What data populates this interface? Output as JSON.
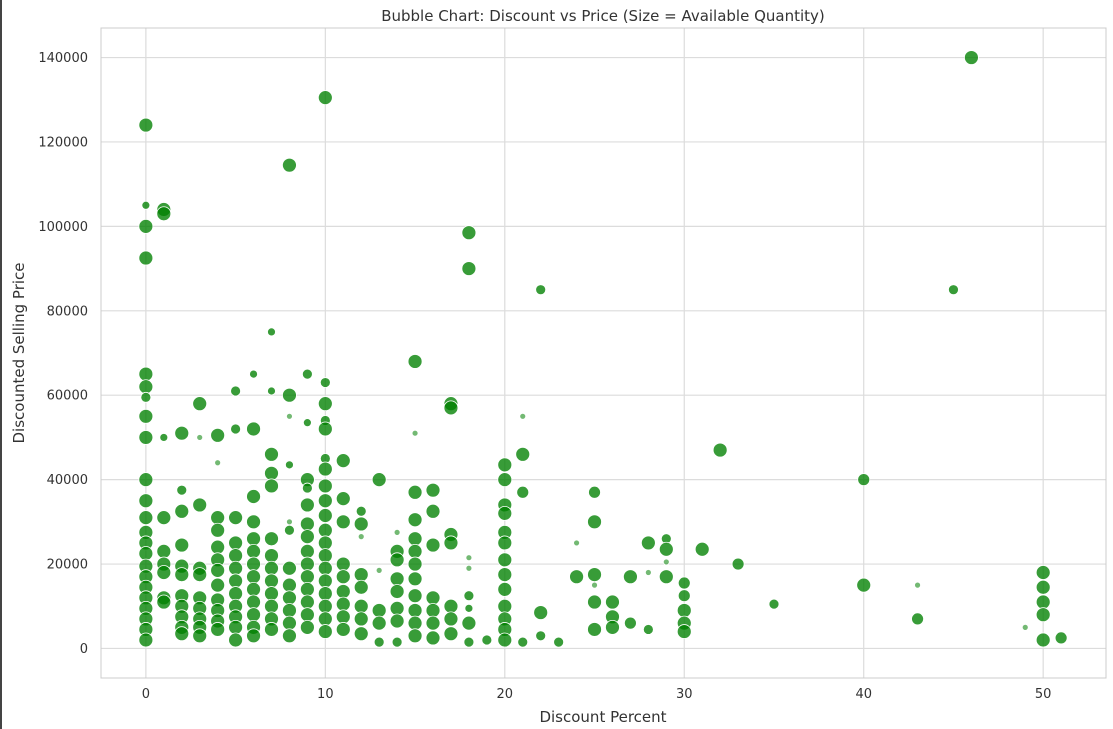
{
  "chart_data": {
    "type": "scatter",
    "title": "Bubble Chart: Discount vs Price (Size = Available Quantity)",
    "xlabel": "Discount Percent",
    "ylabel": "Discounted Selling Price",
    "xlim": [
      -2.5,
      53.5
    ],
    "ylim": [
      -7000,
      147000
    ],
    "xticks": [
      0,
      10,
      20,
      30,
      40,
      50
    ],
    "yticks": [
      0,
      20000,
      40000,
      60000,
      80000,
      100000,
      120000,
      140000
    ],
    "grid": true,
    "color": "#008000",
    "size_encoding": "Available Quantity",
    "points": [
      {
        "x": 0,
        "y": 124000,
        "s": 7
      },
      {
        "x": 0,
        "y": 105000,
        "s": 4
      },
      {
        "x": 0,
        "y": 100000,
        "s": 7
      },
      {
        "x": 0,
        "y": 92500,
        "s": 7
      },
      {
        "x": 0,
        "y": 65000,
        "s": 7
      },
      {
        "x": 0,
        "y": 62000,
        "s": 7
      },
      {
        "x": 0,
        "y": 59500,
        "s": 5
      },
      {
        "x": 0,
        "y": 55000,
        "s": 7
      },
      {
        "x": 0,
        "y": 50000,
        "s": 7
      },
      {
        "x": 0,
        "y": 40000,
        "s": 7
      },
      {
        "x": 0,
        "y": 35000,
        "s": 7
      },
      {
        "x": 0,
        "y": 31000,
        "s": 7
      },
      {
        "x": 0,
        "y": 27500,
        "s": 7
      },
      {
        "x": 0,
        "y": 25000,
        "s": 7
      },
      {
        "x": 0,
        "y": 22500,
        "s": 7
      },
      {
        "x": 0,
        "y": 19500,
        "s": 7
      },
      {
        "x": 0,
        "y": 17000,
        "s": 7
      },
      {
        "x": 0,
        "y": 14500,
        "s": 7
      },
      {
        "x": 0,
        "y": 12000,
        "s": 7
      },
      {
        "x": 0,
        "y": 9500,
        "s": 7
      },
      {
        "x": 0,
        "y": 7000,
        "s": 7
      },
      {
        "x": 0,
        "y": 4500,
        "s": 7
      },
      {
        "x": 0,
        "y": 2000,
        "s": 7
      },
      {
        "x": 1,
        "y": 104000,
        "s": 7
      },
      {
        "x": 1,
        "y": 103000,
        "s": 7
      },
      {
        "x": 1,
        "y": 50000,
        "s": 4
      },
      {
        "x": 1,
        "y": 31000,
        "s": 7
      },
      {
        "x": 1,
        "y": 23000,
        "s": 7
      },
      {
        "x": 1,
        "y": 20000,
        "s": 7
      },
      {
        "x": 1,
        "y": 18000,
        "s": 7
      },
      {
        "x": 1,
        "y": 12000,
        "s": 7
      },
      {
        "x": 1,
        "y": 11000,
        "s": 7
      },
      {
        "x": 2,
        "y": 51000,
        "s": 7
      },
      {
        "x": 2,
        "y": 37500,
        "s": 5
      },
      {
        "x": 2,
        "y": 32500,
        "s": 7
      },
      {
        "x": 2,
        "y": 24500,
        "s": 7
      },
      {
        "x": 2,
        "y": 19500,
        "s": 7
      },
      {
        "x": 2,
        "y": 17500,
        "s": 7
      },
      {
        "x": 2,
        "y": 12500,
        "s": 7
      },
      {
        "x": 2,
        "y": 10000,
        "s": 7
      },
      {
        "x": 2,
        "y": 7500,
        "s": 7
      },
      {
        "x": 2,
        "y": 5000,
        "s": 7
      },
      {
        "x": 2,
        "y": 3500,
        "s": 7
      },
      {
        "x": 3,
        "y": 58000,
        "s": 7
      },
      {
        "x": 3,
        "y": 50000,
        "s": 3
      },
      {
        "x": 3,
        "y": 34000,
        "s": 7
      },
      {
        "x": 3,
        "y": 19000,
        "s": 7
      },
      {
        "x": 3,
        "y": 17500,
        "s": 7
      },
      {
        "x": 3,
        "y": 12000,
        "s": 7
      },
      {
        "x": 3,
        "y": 9500,
        "s": 7
      },
      {
        "x": 3,
        "y": 7000,
        "s": 7
      },
      {
        "x": 3,
        "y": 5000,
        "s": 7
      },
      {
        "x": 3,
        "y": 3000,
        "s": 7
      },
      {
        "x": 4,
        "y": 50500,
        "s": 7
      },
      {
        "x": 4,
        "y": 44000,
        "s": 3
      },
      {
        "x": 4,
        "y": 31000,
        "s": 7
      },
      {
        "x": 4,
        "y": 28000,
        "s": 7
      },
      {
        "x": 4,
        "y": 24000,
        "s": 7
      },
      {
        "x": 4,
        "y": 21000,
        "s": 7
      },
      {
        "x": 4,
        "y": 18500,
        "s": 7
      },
      {
        "x": 4,
        "y": 15000,
        "s": 7
      },
      {
        "x": 4,
        "y": 11500,
        "s": 7
      },
      {
        "x": 4,
        "y": 9000,
        "s": 7
      },
      {
        "x": 4,
        "y": 6500,
        "s": 7
      },
      {
        "x": 4,
        "y": 4500,
        "s": 7
      },
      {
        "x": 5,
        "y": 61000,
        "s": 5
      },
      {
        "x": 5,
        "y": 52000,
        "s": 5
      },
      {
        "x": 5,
        "y": 31000,
        "s": 7
      },
      {
        "x": 5,
        "y": 25000,
        "s": 7
      },
      {
        "x": 5,
        "y": 22000,
        "s": 7
      },
      {
        "x": 5,
        "y": 19000,
        "s": 7
      },
      {
        "x": 5,
        "y": 16000,
        "s": 7
      },
      {
        "x": 5,
        "y": 13000,
        "s": 7
      },
      {
        "x": 5,
        "y": 10000,
        "s": 7
      },
      {
        "x": 5,
        "y": 7500,
        "s": 7
      },
      {
        "x": 5,
        "y": 5000,
        "s": 7
      },
      {
        "x": 5,
        "y": 2000,
        "s": 7
      },
      {
        "x": 6,
        "y": 65000,
        "s": 4
      },
      {
        "x": 6,
        "y": 52000,
        "s": 7
      },
      {
        "x": 6,
        "y": 36000,
        "s": 7
      },
      {
        "x": 6,
        "y": 30000,
        "s": 7
      },
      {
        "x": 6,
        "y": 26000,
        "s": 7
      },
      {
        "x": 6,
        "y": 23000,
        "s": 7
      },
      {
        "x": 6,
        "y": 20000,
        "s": 7
      },
      {
        "x": 6,
        "y": 17000,
        "s": 7
      },
      {
        "x": 6,
        "y": 14000,
        "s": 7
      },
      {
        "x": 6,
        "y": 11000,
        "s": 7
      },
      {
        "x": 6,
        "y": 8000,
        "s": 7
      },
      {
        "x": 6,
        "y": 5000,
        "s": 7
      },
      {
        "x": 6,
        "y": 3000,
        "s": 7
      },
      {
        "x": 7,
        "y": 75000,
        "s": 4
      },
      {
        "x": 7,
        "y": 61000,
        "s": 4
      },
      {
        "x": 7,
        "y": 46000,
        "s": 7
      },
      {
        "x": 7,
        "y": 41500,
        "s": 7
      },
      {
        "x": 7,
        "y": 38500,
        "s": 7
      },
      {
        "x": 7,
        "y": 26000,
        "s": 7
      },
      {
        "x": 7,
        "y": 22000,
        "s": 7
      },
      {
        "x": 7,
        "y": 19000,
        "s": 7
      },
      {
        "x": 7,
        "y": 16000,
        "s": 7
      },
      {
        "x": 7,
        "y": 13000,
        "s": 7
      },
      {
        "x": 7,
        "y": 10000,
        "s": 7
      },
      {
        "x": 7,
        "y": 7000,
        "s": 7
      },
      {
        "x": 7,
        "y": 4500,
        "s": 7
      },
      {
        "x": 8,
        "y": 114500,
        "s": 7
      },
      {
        "x": 8,
        "y": 60000,
        "s": 7
      },
      {
        "x": 8,
        "y": 55000,
        "s": 3
      },
      {
        "x": 8,
        "y": 43500,
        "s": 4
      },
      {
        "x": 8,
        "y": 30000,
        "s": 3
      },
      {
        "x": 8,
        "y": 28000,
        "s": 5
      },
      {
        "x": 8,
        "y": 19000,
        "s": 7
      },
      {
        "x": 8,
        "y": 15000,
        "s": 7
      },
      {
        "x": 8,
        "y": 12000,
        "s": 7
      },
      {
        "x": 8,
        "y": 9000,
        "s": 7
      },
      {
        "x": 8,
        "y": 6000,
        "s": 7
      },
      {
        "x": 8,
        "y": 3000,
        "s": 7
      },
      {
        "x": 9,
        "y": 65000,
        "s": 5
      },
      {
        "x": 9,
        "y": 53500,
        "s": 4
      },
      {
        "x": 9,
        "y": 40000,
        "s": 7
      },
      {
        "x": 9,
        "y": 38000,
        "s": 5
      },
      {
        "x": 9,
        "y": 34000,
        "s": 7
      },
      {
        "x": 9,
        "y": 29500,
        "s": 7
      },
      {
        "x": 9,
        "y": 26500,
        "s": 7
      },
      {
        "x": 9,
        "y": 23000,
        "s": 7
      },
      {
        "x": 9,
        "y": 20000,
        "s": 7
      },
      {
        "x": 9,
        "y": 17000,
        "s": 7
      },
      {
        "x": 9,
        "y": 14000,
        "s": 7
      },
      {
        "x": 9,
        "y": 11000,
        "s": 7
      },
      {
        "x": 9,
        "y": 8000,
        "s": 7
      },
      {
        "x": 9,
        "y": 5000,
        "s": 7
      },
      {
        "x": 10,
        "y": 130500,
        "s": 7
      },
      {
        "x": 10,
        "y": 63000,
        "s": 5
      },
      {
        "x": 10,
        "y": 58000,
        "s": 7
      },
      {
        "x": 10,
        "y": 54000,
        "s": 5
      },
      {
        "x": 10,
        "y": 52000,
        "s": 7
      },
      {
        "x": 10,
        "y": 45000,
        "s": 5
      },
      {
        "x": 10,
        "y": 42500,
        "s": 7
      },
      {
        "x": 10,
        "y": 38500,
        "s": 7
      },
      {
        "x": 10,
        "y": 35000,
        "s": 7
      },
      {
        "x": 10,
        "y": 31500,
        "s": 7
      },
      {
        "x": 10,
        "y": 28000,
        "s": 7
      },
      {
        "x": 10,
        "y": 25000,
        "s": 7
      },
      {
        "x": 10,
        "y": 22000,
        "s": 7
      },
      {
        "x": 10,
        "y": 19000,
        "s": 7
      },
      {
        "x": 10,
        "y": 16000,
        "s": 7
      },
      {
        "x": 10,
        "y": 13000,
        "s": 7
      },
      {
        "x": 10,
        "y": 10000,
        "s": 7
      },
      {
        "x": 10,
        "y": 7000,
        "s": 7
      },
      {
        "x": 10,
        "y": 4000,
        "s": 7
      },
      {
        "x": 11,
        "y": 44500,
        "s": 7
      },
      {
        "x": 11,
        "y": 35500,
        "s": 7
      },
      {
        "x": 11,
        "y": 30000,
        "s": 7
      },
      {
        "x": 11,
        "y": 20000,
        "s": 7
      },
      {
        "x": 11,
        "y": 17000,
        "s": 7
      },
      {
        "x": 11,
        "y": 13500,
        "s": 7
      },
      {
        "x": 11,
        "y": 10500,
        "s": 7
      },
      {
        "x": 11,
        "y": 7500,
        "s": 7
      },
      {
        "x": 11,
        "y": 4500,
        "s": 7
      },
      {
        "x": 12,
        "y": 32500,
        "s": 5
      },
      {
        "x": 12,
        "y": 29500,
        "s": 7
      },
      {
        "x": 12,
        "y": 26500,
        "s": 3
      },
      {
        "x": 12,
        "y": 17500,
        "s": 7
      },
      {
        "x": 12,
        "y": 14500,
        "s": 7
      },
      {
        "x": 12,
        "y": 10000,
        "s": 7
      },
      {
        "x": 12,
        "y": 7000,
        "s": 7
      },
      {
        "x": 12,
        "y": 3500,
        "s": 7
      },
      {
        "x": 13,
        "y": 40000,
        "s": 7
      },
      {
        "x": 13,
        "y": 18500,
        "s": 3
      },
      {
        "x": 13,
        "y": 9000,
        "s": 7
      },
      {
        "x": 13,
        "y": 6000,
        "s": 7
      },
      {
        "x": 13,
        "y": 1500,
        "s": 5
      },
      {
        "x": 14,
        "y": 27500,
        "s": 3
      },
      {
        "x": 14,
        "y": 23000,
        "s": 7
      },
      {
        "x": 14,
        "y": 21000,
        "s": 7
      },
      {
        "x": 14,
        "y": 16500,
        "s": 7
      },
      {
        "x": 14,
        "y": 13500,
        "s": 7
      },
      {
        "x": 14,
        "y": 9500,
        "s": 7
      },
      {
        "x": 14,
        "y": 6500,
        "s": 7
      },
      {
        "x": 14,
        "y": 1500,
        "s": 5
      },
      {
        "x": 15,
        "y": 68000,
        "s": 7
      },
      {
        "x": 15,
        "y": 51000,
        "s": 3
      },
      {
        "x": 15,
        "y": 37000,
        "s": 7
      },
      {
        "x": 15,
        "y": 30500,
        "s": 7
      },
      {
        "x": 15,
        "y": 26000,
        "s": 7
      },
      {
        "x": 15,
        "y": 23000,
        "s": 7
      },
      {
        "x": 15,
        "y": 20000,
        "s": 7
      },
      {
        "x": 15,
        "y": 16500,
        "s": 7
      },
      {
        "x": 15,
        "y": 12500,
        "s": 7
      },
      {
        "x": 15,
        "y": 9000,
        "s": 7
      },
      {
        "x": 15,
        "y": 6000,
        "s": 7
      },
      {
        "x": 15,
        "y": 3000,
        "s": 7
      },
      {
        "x": 16,
        "y": 37500,
        "s": 7
      },
      {
        "x": 16,
        "y": 32500,
        "s": 7
      },
      {
        "x": 16,
        "y": 24500,
        "s": 7
      },
      {
        "x": 16,
        "y": 12000,
        "s": 7
      },
      {
        "x": 16,
        "y": 9000,
        "s": 7
      },
      {
        "x": 16,
        "y": 6000,
        "s": 7
      },
      {
        "x": 16,
        "y": 2500,
        "s": 7
      },
      {
        "x": 17,
        "y": 58000,
        "s": 7
      },
      {
        "x": 17,
        "y": 57000,
        "s": 7
      },
      {
        "x": 17,
        "y": 27000,
        "s": 7
      },
      {
        "x": 17,
        "y": 25000,
        "s": 7
      },
      {
        "x": 17,
        "y": 10000,
        "s": 7
      },
      {
        "x": 17,
        "y": 7000,
        "s": 7
      },
      {
        "x": 17,
        "y": 3500,
        "s": 7
      },
      {
        "x": 18,
        "y": 98500,
        "s": 7
      },
      {
        "x": 18,
        "y": 90000,
        "s": 7
      },
      {
        "x": 18,
        "y": 21500,
        "s": 3
      },
      {
        "x": 18,
        "y": 19000,
        "s": 3
      },
      {
        "x": 18,
        "y": 12500,
        "s": 5
      },
      {
        "x": 18,
        "y": 9500,
        "s": 4
      },
      {
        "x": 18,
        "y": 6000,
        "s": 7
      },
      {
        "x": 18,
        "y": 1500,
        "s": 5
      },
      {
        "x": 19,
        "y": 2000,
        "s": 5
      },
      {
        "x": 20,
        "y": 43500,
        "s": 7
      },
      {
        "x": 20,
        "y": 40000,
        "s": 7
      },
      {
        "x": 20,
        "y": 34000,
        "s": 7
      },
      {
        "x": 20,
        "y": 32000,
        "s": 7
      },
      {
        "x": 20,
        "y": 27500,
        "s": 7
      },
      {
        "x": 20,
        "y": 25000,
        "s": 7
      },
      {
        "x": 20,
        "y": 21000,
        "s": 7
      },
      {
        "x": 20,
        "y": 17500,
        "s": 7
      },
      {
        "x": 20,
        "y": 14000,
        "s": 7
      },
      {
        "x": 20,
        "y": 10000,
        "s": 7
      },
      {
        "x": 20,
        "y": 7000,
        "s": 7
      },
      {
        "x": 20,
        "y": 4500,
        "s": 7
      },
      {
        "x": 20,
        "y": 2000,
        "s": 7
      },
      {
        "x": 21,
        "y": 55000,
        "s": 3
      },
      {
        "x": 21,
        "y": 46000,
        "s": 7
      },
      {
        "x": 21,
        "y": 37000,
        "s": 6
      },
      {
        "x": 21,
        "y": 1500,
        "s": 5
      },
      {
        "x": 22,
        "y": 85000,
        "s": 5
      },
      {
        "x": 22,
        "y": 8500,
        "s": 7
      },
      {
        "x": 22,
        "y": 3000,
        "s": 5
      },
      {
        "x": 23,
        "y": 1500,
        "s": 5
      },
      {
        "x": 24,
        "y": 25000,
        "s": 3
      },
      {
        "x": 24,
        "y": 17000,
        "s": 7
      },
      {
        "x": 25,
        "y": 37000,
        "s": 6
      },
      {
        "x": 25,
        "y": 30000,
        "s": 7
      },
      {
        "x": 25,
        "y": 17500,
        "s": 7
      },
      {
        "x": 25,
        "y": 15000,
        "s": 3
      },
      {
        "x": 25,
        "y": 11000,
        "s": 7
      },
      {
        "x": 25,
        "y": 4500,
        "s": 7
      },
      {
        "x": 26,
        "y": 11000,
        "s": 7
      },
      {
        "x": 26,
        "y": 7500,
        "s": 7
      },
      {
        "x": 26,
        "y": 5000,
        "s": 7
      },
      {
        "x": 27,
        "y": 17000,
        "s": 7
      },
      {
        "x": 27,
        "y": 6000,
        "s": 6
      },
      {
        "x": 28,
        "y": 25000,
        "s": 7
      },
      {
        "x": 28,
        "y": 18000,
        "s": 3
      },
      {
        "x": 28,
        "y": 4500,
        "s": 5
      },
      {
        "x": 29,
        "y": 26000,
        "s": 5
      },
      {
        "x": 29,
        "y": 23500,
        "s": 7
      },
      {
        "x": 29,
        "y": 20500,
        "s": 3
      },
      {
        "x": 29,
        "y": 17000,
        "s": 7
      },
      {
        "x": 30,
        "y": 15500,
        "s": 6
      },
      {
        "x": 30,
        "y": 12500,
        "s": 6
      },
      {
        "x": 30,
        "y": 9000,
        "s": 7
      },
      {
        "x": 30,
        "y": 6000,
        "s": 7
      },
      {
        "x": 30,
        "y": 4000,
        "s": 7
      },
      {
        "x": 31,
        "y": 23500,
        "s": 7
      },
      {
        "x": 32,
        "y": 47000,
        "s": 7
      },
      {
        "x": 33,
        "y": 20000,
        "s": 6
      },
      {
        "x": 35,
        "y": 10500,
        "s": 5
      },
      {
        "x": 40,
        "y": 40000,
        "s": 6
      },
      {
        "x": 40,
        "y": 15000,
        "s": 7
      },
      {
        "x": 43,
        "y": 15000,
        "s": 3
      },
      {
        "x": 43,
        "y": 7000,
        "s": 6
      },
      {
        "x": 45,
        "y": 85000,
        "s": 5
      },
      {
        "x": 46,
        "y": 140000,
        "s": 7
      },
      {
        "x": 49,
        "y": 5000,
        "s": 3
      },
      {
        "x": 50,
        "y": 18000,
        "s": 7
      },
      {
        "x": 50,
        "y": 14500,
        "s": 7
      },
      {
        "x": 50,
        "y": 11000,
        "s": 7
      },
      {
        "x": 50,
        "y": 8000,
        "s": 7
      },
      {
        "x": 50,
        "y": 2000,
        "s": 7
      },
      {
        "x": 51,
        "y": 2500,
        "s": 6
      }
    ]
  }
}
